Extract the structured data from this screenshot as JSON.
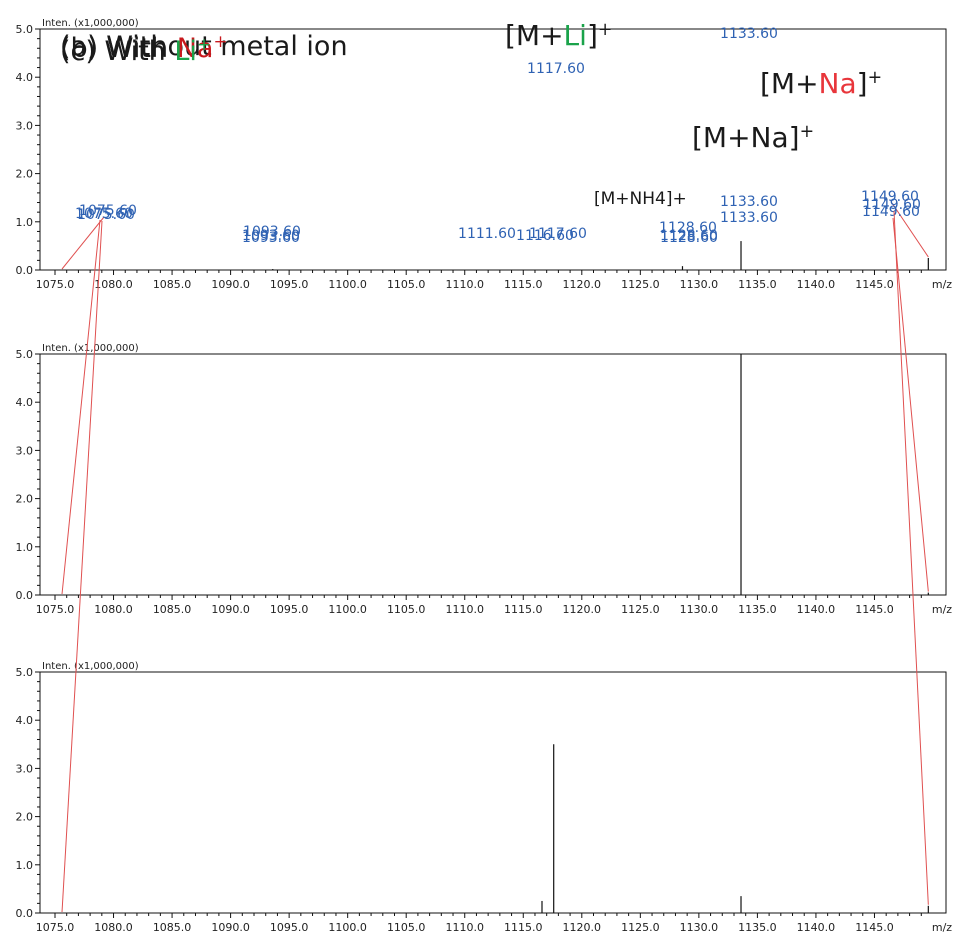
{
  "chart_data": [
    {
      "type": "bar",
      "panel": "a",
      "title_parts": [
        {
          "text": "(a) Without metal ion",
          "color": "#1a1a1a"
        }
      ],
      "yunit_label": "Inten. (x1,000,000)",
      "xunit_label": "m/z",
      "xlim": [
        1075.0,
        1150.0
      ],
      "ylim": [
        0.0,
        5.0
      ],
      "x_ticks": [
        "1075.0",
        "1080.0",
        "1085.0",
        "1090.0",
        "1095.0",
        "1100.0",
        "1105.0",
        "1110.0",
        "1115.0",
        "1120.0",
        "1125.0",
        "1130.0",
        "1135.0",
        "1140.0",
        "1145.0"
      ],
      "y_ticks": [
        "0.0",
        "1.0",
        "2.0",
        "3.0",
        "4.0",
        "5.0"
      ],
      "peaks": [
        {
          "mz": 1075.6,
          "intensity": 0.0
        },
        {
          "mz": 1093.6,
          "intensity": 0.02
        },
        {
          "mz": 1111.6,
          "intensity": 0.0
        },
        {
          "mz": 1117.6,
          "intensity": 0.0
        },
        {
          "mz": 1128.6,
          "intensity": 0.08
        },
        {
          "mz": 1133.6,
          "intensity": 0.6
        },
        {
          "mz": 1149.6,
          "intensity": 0.25
        }
      ],
      "peak_labels": [
        "1075.60",
        "1093.60",
        "1111.60",
        "1117.60",
        "1128.60",
        "1133.60",
        "1149.60"
      ],
      "annotations": [
        {
          "parts": [
            {
              "text": "[M+Na]",
              "color": "#1a1a1a"
            },
            {
              "text": "+",
              "color": "#1a1a1a",
              "sup": true
            }
          ]
        },
        {
          "parts": [
            {
              "text": "[M+NH4]+",
              "color": "#1a1a1a"
            }
          ]
        }
      ]
    },
    {
      "type": "bar",
      "panel": "b",
      "title_parts": [
        {
          "text": "(b) With ",
          "color": "#1a1a1a"
        },
        {
          "text": "Na",
          "color": "#c8191e"
        },
        {
          "text": "+",
          "color": "#c8191e",
          "sup": true
        }
      ],
      "yunit_label": "Inten. (x1,000,000)",
      "xunit_label": "m/z",
      "xlim": [
        1075.0,
        1150.0
      ],
      "ylim": [
        0.0,
        5.0
      ],
      "x_ticks": [
        "1075.0",
        "1080.0",
        "1085.0",
        "1090.0",
        "1095.0",
        "1100.0",
        "1105.0",
        "1110.0",
        "1115.0",
        "1120.0",
        "1125.0",
        "1130.0",
        "1135.0",
        "1140.0",
        "1145.0"
      ],
      "y_ticks": [
        "0.0",
        "1.0",
        "2.0",
        "3.0",
        "4.0",
        "5.0"
      ],
      "peaks": [
        {
          "mz": 1075.6,
          "intensity": 0.0
        },
        {
          "mz": 1093.6,
          "intensity": 0.0
        },
        {
          "mz": 1116.6,
          "intensity": 0.0
        },
        {
          "mz": 1128.6,
          "intensity": 0.0
        },
        {
          "mz": 1133.6,
          "intensity": 5.0
        },
        {
          "mz": 1149.6,
          "intensity": 0.05
        }
      ],
      "peak_labels": [
        "1075.60",
        "1093.60",
        "1116.60",
        "1128.60",
        "1133.60",
        "1149.60"
      ],
      "annotations": [
        {
          "parts": [
            {
              "text": "[M+",
              "color": "#1a1a1a"
            },
            {
              "text": "Na",
              "color": "#e8363b"
            },
            {
              "text": "]",
              "color": "#1a1a1a"
            },
            {
              "text": "+",
              "color": "#1a1a1a",
              "sup": true
            }
          ]
        }
      ]
    },
    {
      "type": "bar",
      "panel": "c",
      "title_parts": [
        {
          "text": "(c) With ",
          "color": "#1a1a1a"
        },
        {
          "text": "Li",
          "color": "#1aa34a"
        },
        {
          "text": "+",
          "color": "#1aa34a",
          "sup": true
        }
      ],
      "yunit_label": "Inten. (x1,000,000)",
      "xunit_label": "m/z",
      "xlim": [
        1075.0,
        1150.0
      ],
      "ylim": [
        0.0,
        5.0
      ],
      "x_ticks": [
        "1075.0",
        "1080.0",
        "1085.0",
        "1090.0",
        "1095.0",
        "1100.0",
        "1105.0",
        "1110.0",
        "1115.0",
        "1120.0",
        "1125.0",
        "1130.0",
        "1135.0",
        "1140.0",
        "1145.0"
      ],
      "y_ticks": [
        "0.0",
        "1.0",
        "2.0",
        "3.0",
        "4.0",
        "5.0"
      ],
      "peaks": [
        {
          "mz": 1075.6,
          "intensity": 0.0
        },
        {
          "mz": 1093.6,
          "intensity": 0.0
        },
        {
          "mz": 1116.6,
          "intensity": 0.25
        },
        {
          "mz": 1117.6,
          "intensity": 3.5
        },
        {
          "mz": 1128.6,
          "intensity": 0.0
        },
        {
          "mz": 1133.6,
          "intensity": 0.35
        },
        {
          "mz": 1149.6,
          "intensity": 0.15
        }
      ],
      "peak_labels": [
        "1075.60",
        "1093.60",
        "1117.60",
        "1128.60",
        "1133.60",
        "1149.60"
      ],
      "annotations": [
        {
          "parts": [
            {
              "text": "[M+",
              "color": "#1a1a1a"
            },
            {
              "text": "Li",
              "color": "#1aa34a"
            },
            {
              "text": "]",
              "color": "#1a1a1a"
            },
            {
              "text": "+",
              "color": "#1a1a1a",
              "sup": true
            }
          ]
        }
      ]
    }
  ]
}
